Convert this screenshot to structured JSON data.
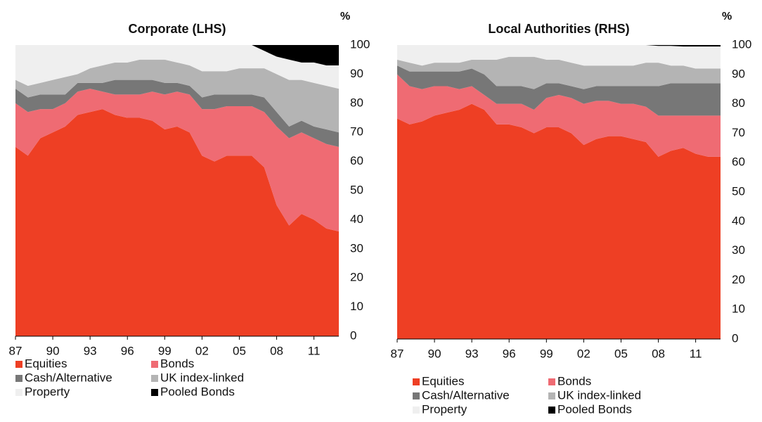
{
  "chart_data": [
    {
      "type": "area",
      "stacked": true,
      "title": "Corporate (LHS)",
      "ylabel": "%",
      "x": [
        1987,
        1988,
        1989,
        1990,
        1991,
        1992,
        1993,
        1994,
        1995,
        1996,
        1997,
        1998,
        1999,
        2000,
        2001,
        2002,
        2003,
        2004,
        2005,
        2006,
        2007,
        2008,
        2009,
        2010,
        2011,
        2012,
        2013
      ],
      "xlim": [
        1987,
        2013
      ],
      "xticks": [
        {
          "value": 1987,
          "label": "87"
        },
        {
          "value": 1990,
          "label": "90"
        },
        {
          "value": 1993,
          "label": "93"
        },
        {
          "value": 1996,
          "label": "96"
        },
        {
          "value": 1999,
          "label": "99"
        },
        {
          "value": 2002,
          "label": "02"
        },
        {
          "value": 2005,
          "label": "05"
        },
        {
          "value": 2008,
          "label": "08"
        },
        {
          "value": 2011,
          "label": "11"
        }
      ],
      "ylim": [
        0,
        100
      ],
      "yticks": [
        0,
        10,
        20,
        30,
        40,
        50,
        60,
        70,
        80,
        90,
        100
      ],
      "series": [
        {
          "name": "Equities",
          "color": "#ee3f24",
          "values": [
            65,
            62,
            68,
            70,
            72,
            76,
            77,
            78,
            76,
            75,
            75,
            74,
            71,
            72,
            70,
            62,
            60,
            62,
            62,
            62,
            58,
            45,
            38,
            42,
            40,
            37,
            36
          ]
        },
        {
          "name": "Bonds",
          "color": "#ef6b73",
          "values": [
            15,
            15,
            10,
            8,
            8,
            8,
            8,
            6,
            7,
            8,
            8,
            10,
            12,
            12,
            13,
            16,
            18,
            17,
            17,
            17,
            19,
            27,
            30,
            28,
            28,
            29,
            29
          ]
        },
        {
          "name": "Cash/Alternative",
          "color": "#777777",
          "values": [
            5,
            5,
            5,
            5,
            3,
            3,
            2,
            3,
            5,
            5,
            5,
            4,
            4,
            3,
            3,
            4,
            5,
            4,
            4,
            4,
            5,
            5,
            4,
            4,
            4,
            5,
            5
          ]
        },
        {
          "name": "UK index-linked",
          "color": "#b4b4b4",
          "values": [
            3,
            4,
            4,
            5,
            6,
            3,
            5,
            6,
            6,
            6,
            7,
            7,
            8,
            7,
            7,
            9,
            8,
            8,
            9,
            9,
            10,
            13,
            16,
            14,
            15,
            15,
            15
          ]
        },
        {
          "name": "Property",
          "color": "#efefef",
          "values": [
            12,
            14,
            13,
            12,
            11,
            10,
            8,
            7,
            6,
            6,
            5,
            5,
            5,
            6,
            7,
            9,
            9,
            9,
            8,
            8,
            6,
            6,
            7,
            6,
            7,
            7,
            8
          ]
        },
        {
          "name": "Pooled Bonds",
          "color": "#000000",
          "values": [
            0,
            0,
            0,
            0,
            0,
            0,
            0,
            0,
            0,
            0,
            0,
            0,
            0,
            0,
            0,
            0,
            0,
            0,
            0,
            0,
            2,
            4,
            5,
            6,
            6,
            7,
            7
          ]
        }
      ]
    },
    {
      "type": "area",
      "stacked": true,
      "title": "Local Authorities (RHS)",
      "ylabel": "%",
      "x": [
        1987,
        1988,
        1989,
        1990,
        1991,
        1992,
        1993,
        1994,
        1995,
        1996,
        1997,
        1998,
        1999,
        2000,
        2001,
        2002,
        2003,
        2004,
        2005,
        2006,
        2007,
        2008,
        2009,
        2010,
        2011,
        2012,
        2013
      ],
      "xlim": [
        1987,
        2013
      ],
      "xticks": [
        {
          "value": 1987,
          "label": "87"
        },
        {
          "value": 1990,
          "label": "90"
        },
        {
          "value": 1993,
          "label": "93"
        },
        {
          "value": 1996,
          "label": "96"
        },
        {
          "value": 1999,
          "label": "99"
        },
        {
          "value": 2002,
          "label": "02"
        },
        {
          "value": 2005,
          "label": "05"
        },
        {
          "value": 2008,
          "label": "08"
        },
        {
          "value": 2011,
          "label": "11"
        }
      ],
      "ylim": [
        0,
        100
      ],
      "yticks": [
        0,
        10,
        20,
        30,
        40,
        50,
        60,
        70,
        80,
        90,
        100
      ],
      "series": [
        {
          "name": "Equities",
          "color": "#ee3f24",
          "values": [
            75,
            73,
            74,
            76,
            77,
            78,
            80,
            78,
            73,
            73,
            72,
            70,
            72,
            72,
            70,
            66,
            68,
            69,
            69,
            68,
            67,
            62,
            64,
            65,
            63,
            62,
            62
          ]
        },
        {
          "name": "Bonds",
          "color": "#ef6b73",
          "values": [
            15,
            13,
            11,
            10,
            9,
            7,
            6,
            5,
            7,
            7,
            8,
            8,
            10,
            11,
            12,
            14,
            13,
            12,
            11,
            12,
            12,
            14,
            12,
            11,
            13,
            14,
            14
          ]
        },
        {
          "name": "Cash/Alternative",
          "color": "#777777",
          "values": [
            3,
            5,
            6,
            5,
            5,
            6,
            6,
            7,
            6,
            6,
            6,
            7,
            5,
            4,
            4,
            5,
            5,
            5,
            6,
            6,
            7,
            10,
            11,
            11,
            11,
            11,
            11
          ]
        },
        {
          "name": "UK index-linked",
          "color": "#b4b4b4",
          "values": [
            2,
            3,
            2,
            3,
            3,
            3,
            3,
            5,
            9,
            10,
            10,
            11,
            8,
            8,
            8,
            8,
            7,
            7,
            7,
            7,
            8,
            8,
            6,
            6,
            5,
            5,
            5
          ]
        },
        {
          "name": "Property",
          "color": "#efefef",
          "values": [
            5,
            6,
            7,
            6,
            6,
            6,
            5,
            5,
            5,
            4,
            4,
            4,
            5,
            5,
            6,
            7,
            7,
            7,
            7,
            7,
            6,
            5.7,
            6.7,
            6.5,
            7.5,
            7.5,
            7.5
          ]
        },
        {
          "name": "Pooled Bonds",
          "color": "#000000",
          "values": [
            0,
            0,
            0,
            0,
            0,
            0,
            0,
            0,
            0,
            0,
            0,
            0,
            0,
            0,
            0,
            0,
            0,
            0,
            0,
            0,
            0,
            0.3,
            0.3,
            0.5,
            0.5,
            0.5,
            0.5
          ]
        }
      ]
    }
  ]
}
